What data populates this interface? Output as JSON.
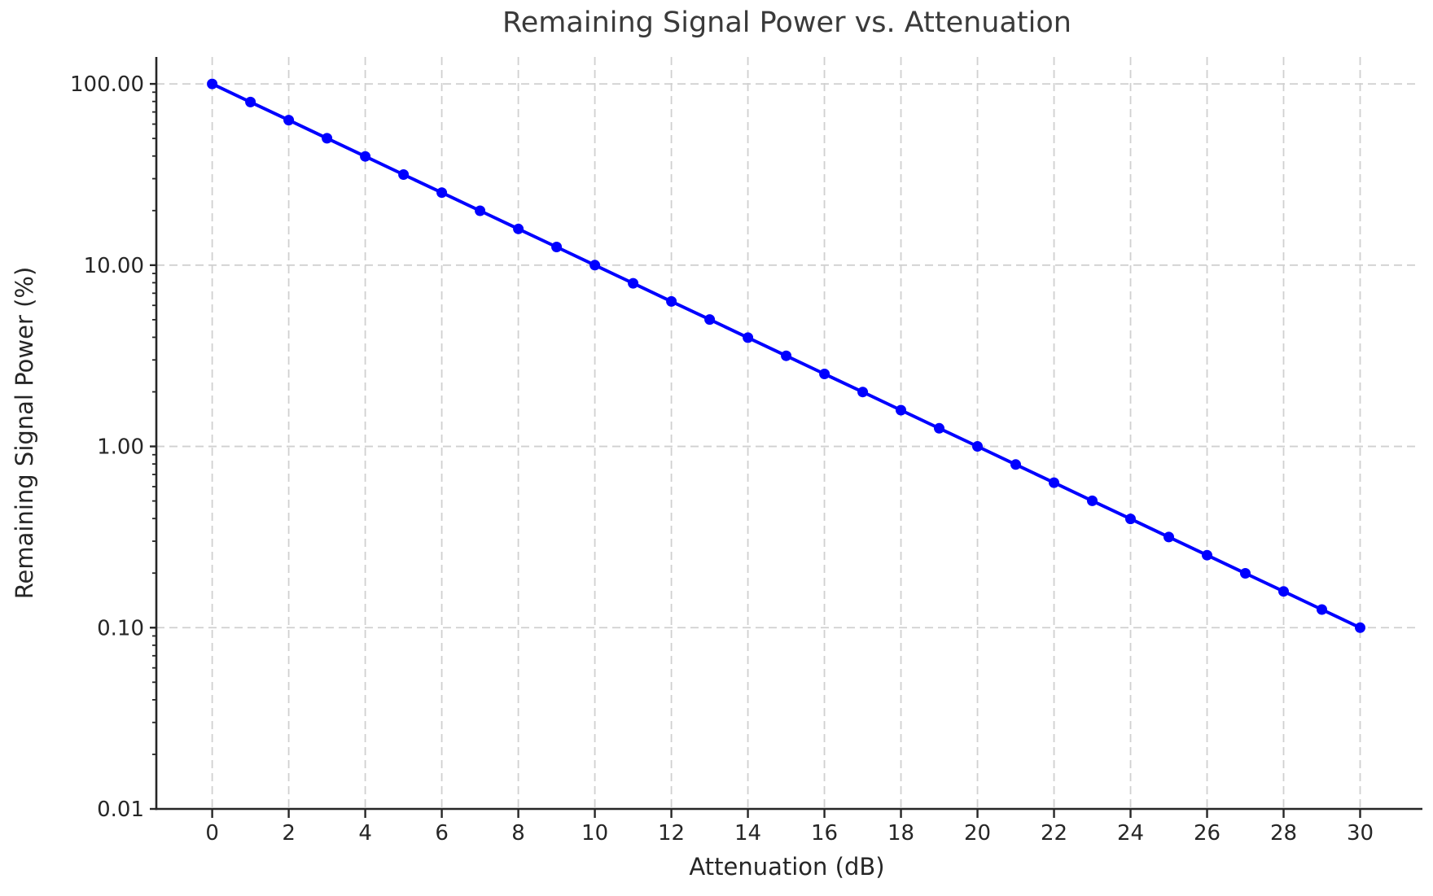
{
  "figure": {
    "title": "Remaining Signal Power vs. Attenuation",
    "xlabel": "Attenuation (dB)",
    "ylabel": "Remaining Signal Power (%)"
  },
  "chart_data": {
    "type": "line",
    "title": "Remaining Signal Power vs. Attenuation",
    "xlabel": "Attenuation (dB)",
    "ylabel": "Remaining Signal Power (%)",
    "x": [
      0,
      1,
      2,
      3,
      4,
      5,
      6,
      7,
      8,
      9,
      10,
      11,
      12,
      13,
      14,
      15,
      16,
      17,
      18,
      19,
      20,
      21,
      22,
      23,
      24,
      25,
      26,
      27,
      28,
      29,
      30
    ],
    "y": [
      100,
      79.43,
      63.1,
      50.12,
      39.81,
      31.62,
      25.12,
      19.95,
      15.85,
      12.59,
      10,
      7.943,
      6.31,
      5.012,
      3.981,
      3.162,
      2.512,
      1.995,
      1.585,
      1.259,
      1.0,
      0.7943,
      0.631,
      0.5012,
      0.3981,
      0.3162,
      0.2512,
      0.1995,
      0.1585,
      0.1259,
      0.1
    ],
    "x_ticks": [
      0,
      2,
      4,
      6,
      8,
      10,
      12,
      14,
      16,
      18,
      20,
      22,
      24,
      26,
      28,
      30
    ],
    "y_ticks": {
      "values": [
        100,
        10,
        1,
        0.1,
        0.01
      ],
      "labels": [
        "100.00",
        "10.00",
        "1.00",
        "0.10",
        "0.01"
      ]
    },
    "xlim": [
      -1.46,
      31.5
    ],
    "ylim": [
      0.01,
      140.8
    ],
    "y_scale": "log",
    "grid": {
      "style": "dashed",
      "color": "#d0d0d0",
      "which": "major-both"
    },
    "line_color": "#0000ff",
    "marker": "circle",
    "spine_color": "#262626",
    "tick_label_color": "#262626",
    "legend": "none"
  }
}
